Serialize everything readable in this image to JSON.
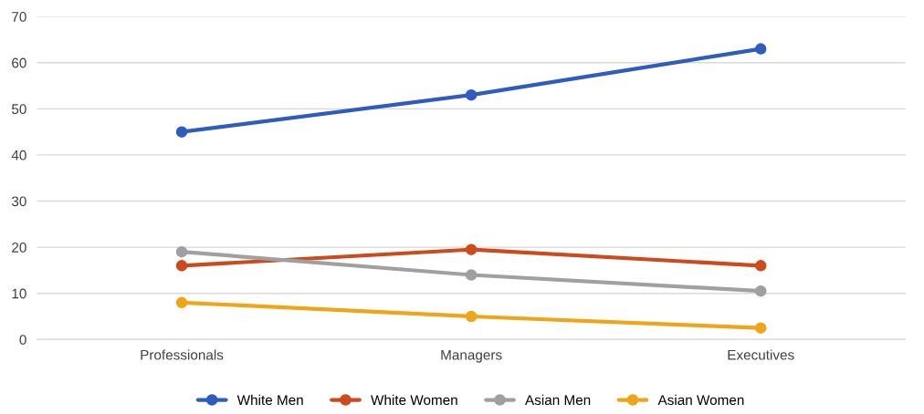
{
  "chart_data": {
    "type": "line",
    "categories": [
      "Professionals",
      "Managers",
      "Executives"
    ],
    "series": [
      {
        "name": "White Men",
        "color": "#2e5cbf",
        "values": [
          45,
          53,
          63
        ]
      },
      {
        "name": "White Women",
        "color": "#cc4a1c",
        "values": [
          16,
          19.5,
          16
        ]
      },
      {
        "name": "Asian Men",
        "color": "#a0a0a0",
        "values": [
          19,
          14,
          10.5
        ]
      },
      {
        "name": "Asian Women",
        "color": "#f0a518",
        "values": [
          8,
          5,
          2.5
        ]
      }
    ],
    "ylim": [
      0,
      70
    ],
    "yticks": [
      0,
      10,
      20,
      30,
      40,
      50,
      60,
      70
    ],
    "grid": "y",
    "legend": "bottom",
    "marker": "circle",
    "line_style": "solid"
  }
}
